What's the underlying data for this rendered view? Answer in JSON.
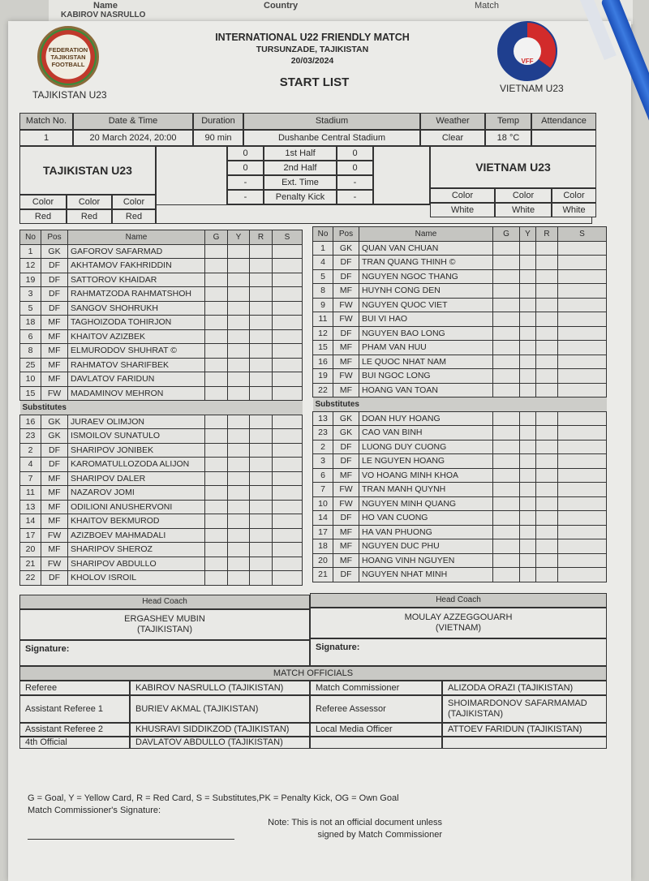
{
  "background_sheet": {
    "name_header": "Name",
    "country_header": "Country",
    "row_text": "KABIROV NASRULLO",
    "match_text": "Match"
  },
  "header": {
    "title": "INTERNATIONAL U22 FRIENDLY MATCH",
    "location": "TURSUNZADE, TAJIKISTAN",
    "date": "20/03/2024",
    "subtitle": "START LIST",
    "home_label": "TAJIKISTAN U23",
    "away_label": "VIETNAM U23",
    "home_logo_text": "FEDERATION TAJIKISTAN FOOTBALL",
    "away_logo_text": "VFF"
  },
  "match_info": {
    "headers": [
      "Match No.",
      "Date & Time",
      "Duration",
      "Stadium",
      "Weather",
      "Temp",
      "Attendance"
    ],
    "values": [
      "1",
      "20 March 2024, 20:00",
      "90 min",
      "Dushanbe Central Stadium",
      "Clear",
      "18 °C",
      ""
    ]
  },
  "teams": {
    "home": "TAJIKISTAN U23",
    "away": "VIETNAM U23",
    "color_label": "Color",
    "home_colors": [
      "Red",
      "Red",
      "Red"
    ],
    "away_colors": [
      "White",
      "White",
      "White"
    ]
  },
  "score": [
    {
      "label": "1st Half",
      "home": "0",
      "away": "0"
    },
    {
      "label": "2nd Half",
      "home": "0",
      "away": "0"
    },
    {
      "label": "Ext. Time",
      "home": "-",
      "away": "-"
    },
    {
      "label": "Penalty Kick",
      "home": "-",
      "away": "-"
    }
  ],
  "columns": [
    "No",
    "Pos",
    "Name",
    "G",
    "Y",
    "R",
    "S"
  ],
  "substitutes_label": "Substitutes",
  "home_starters": [
    [
      "1",
      "GK",
      "GAFOROV SAFARMAD"
    ],
    [
      "12",
      "DF",
      "AKHTAMOV FAKHRIDDIN"
    ],
    [
      "19",
      "DF",
      "SATTOROV KHAIDAR"
    ],
    [
      "3",
      "DF",
      "RAHMATZODA RAHMATSHOH"
    ],
    [
      "5",
      "DF",
      "SANGOV SHOHRUKH"
    ],
    [
      "18",
      "MF",
      "TAGHOIZODA TOHIRJON"
    ],
    [
      "6",
      "MF",
      "KHAITOV AZIZBEK"
    ],
    [
      "8",
      "MF",
      "ELMURODOV SHUHRAT ©"
    ],
    [
      "25",
      "MF",
      "RAHMATOV SHARIFBEK"
    ],
    [
      "10",
      "MF",
      "DAVLATOV FARIDUN"
    ],
    [
      "15",
      "FW",
      "MADAMINOV MEHRON"
    ]
  ],
  "home_subs": [
    [
      "16",
      "GK",
      "JURAEV OLIMJON"
    ],
    [
      "23",
      "GK",
      "ISMOILOV SUNATULO"
    ],
    [
      "2",
      "DF",
      "SHARIPOV JONIBEK"
    ],
    [
      "4",
      "DF",
      "KAROMATULLOZODA ALIJON"
    ],
    [
      "7",
      "MF",
      "SHARIPOV DALER"
    ],
    [
      "11",
      "MF",
      "NAZAROV JOMI"
    ],
    [
      "13",
      "MF",
      "ODILIONI ANUSHERVONI"
    ],
    [
      "14",
      "MF",
      "KHAITOV BEKMUROD"
    ],
    [
      "17",
      "FW",
      "AZIZBOEV MAHMADALI"
    ],
    [
      "20",
      "MF",
      "SHARIPOV SHEROZ"
    ],
    [
      "21",
      "FW",
      "SHARIPOV ABDULLO"
    ],
    [
      "22",
      "DF",
      "KHOLOV ISROIL"
    ]
  ],
  "away_starters": [
    [
      "1",
      "GK",
      "QUAN VAN CHUAN"
    ],
    [
      "4",
      "DF",
      "TRAN QUANG THINH ©"
    ],
    [
      "5",
      "DF",
      "NGUYEN NGOC THANG"
    ],
    [
      "8",
      "MF",
      "HUYNH CONG DEN"
    ],
    [
      "9",
      "FW",
      "NGUYEN QUOC VIET"
    ],
    [
      "11",
      "FW",
      "BUI VI HAO"
    ],
    [
      "12",
      "DF",
      "NGUYEN BAO LONG"
    ],
    [
      "15",
      "MF",
      "PHAM VAN HUU"
    ],
    [
      "16",
      "MF",
      "LE QUOC NHAT NAM"
    ],
    [
      "19",
      "FW",
      "BUI NGOC LONG"
    ],
    [
      "22",
      "MF",
      "HOANG VAN TOAN"
    ]
  ],
  "away_subs": [
    [
      "13",
      "GK",
      "DOAN HUY HOANG"
    ],
    [
      "23",
      "GK",
      "CAO VAN BINH"
    ],
    [
      "2",
      "DF",
      "LUONG DUY CUONG"
    ],
    [
      "3",
      "DF",
      "LE NGUYEN HOANG"
    ],
    [
      "6",
      "MF",
      "VO HOANG MINH KHOA"
    ],
    [
      "7",
      "FW",
      "TRAN MANH QUYNH"
    ],
    [
      "10",
      "FW",
      "NGUYEN MINH QUANG"
    ],
    [
      "14",
      "DF",
      "HO VAN CUONG"
    ],
    [
      "17",
      "MF",
      "HA VAN PHUONG"
    ],
    [
      "18",
      "MF",
      "NGUYEN DUC PHU"
    ],
    [
      "20",
      "MF",
      "HOANG VINH NGUYEN"
    ],
    [
      "21",
      "DF",
      "NGUYEN NHAT MINH"
    ]
  ],
  "coaches": {
    "label": "Head Coach",
    "home_name": "ERGASHEV MUBIN",
    "home_country": "(TAJIKISTAN)",
    "away_name": "MOULAY AZZEGGOUARH",
    "away_country": "(VIETNAM)",
    "signature_label": "Signature:"
  },
  "officials": {
    "title": "MATCH OFFICIALS",
    "rows": [
      {
        "role": "Referee",
        "name": "KABIROV NASRULLO (TAJIKISTAN)",
        "role2": "Match Commissioner",
        "name2": "ALIZODA ORAZI (TAJIKISTAN)"
      },
      {
        "role": "Assistant Referee 1",
        "name": "BURIEV AKMAL (TAJIKISTAN)",
        "role2": "Referee Assessor",
        "name2": "SHOIMARDONOV SAFARMAMAD (TAJIKISTAN)"
      },
      {
        "role": "Assistant Referee 2",
        "name": "KHUSRAVI SIDDIKZOD (TAJIKISTAN)",
        "role2": "Local Media Officer",
        "name2": "ATTOEV FARIDUN (TAJIKISTAN)"
      },
      {
        "role": "4th Official",
        "name": "DAVLATOV ABDULLO (TAJIKISTAN)",
        "role2": "",
        "name2": ""
      }
    ]
  },
  "footer": {
    "legend": "G = Goal, Y = Yellow Card, R = Red Card, S = Substitutes,PK = Penalty Kick, OG = Own Goal",
    "commissioner_signature": "Match Commissioner's Signature:",
    "note_line1": "Note: This is not an official document unless",
    "note_line2": "signed by Match Commissioner"
  },
  "colors": {
    "home_red": "#c0392b",
    "vff_blue": "#1f3f8f",
    "vff_red": "#d22b2b",
    "pen_blue": "#1b4fb8"
  }
}
